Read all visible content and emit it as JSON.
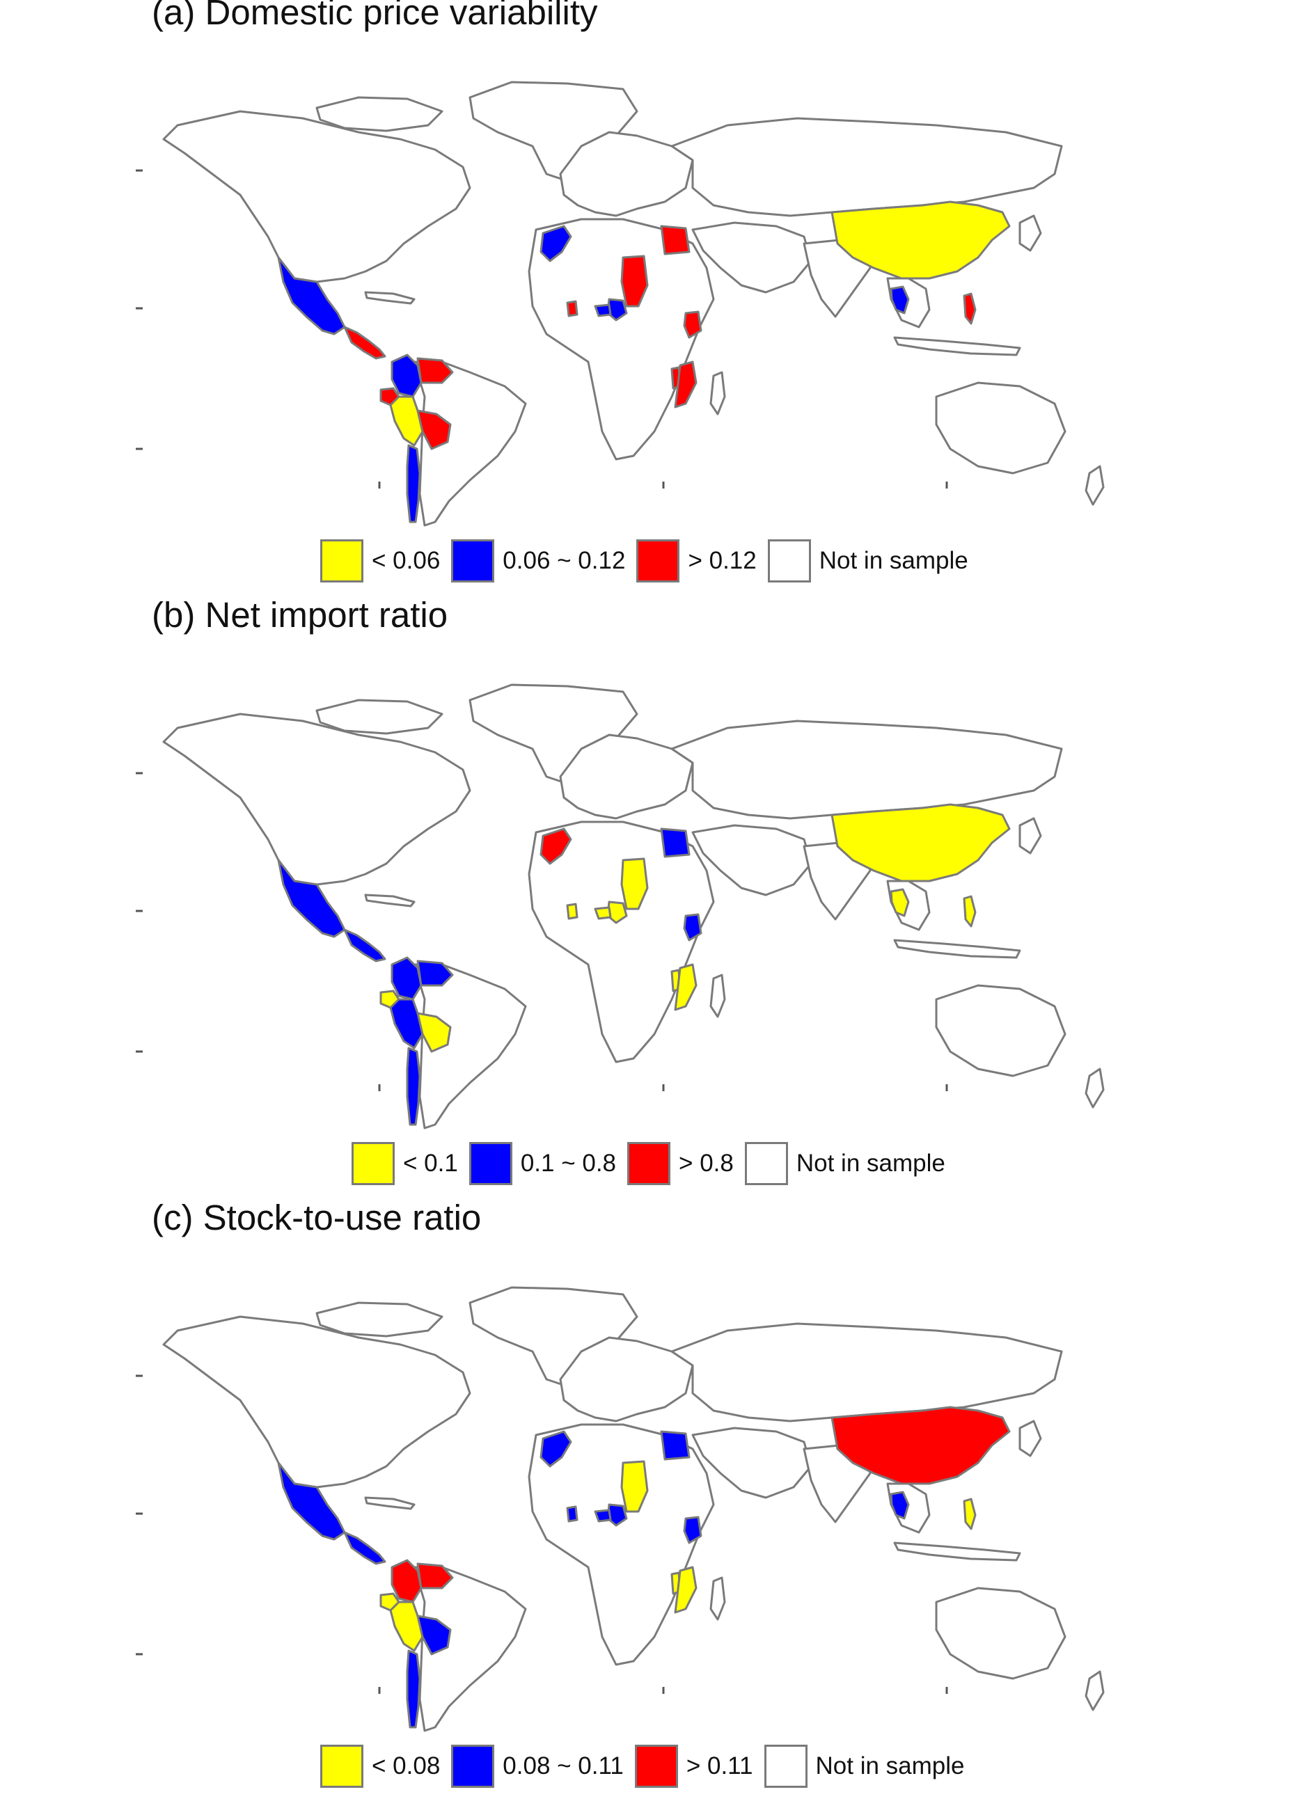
{
  "colors": {
    "yellow": "#ffff00",
    "blue": "#0000ff",
    "red": "#ff0000",
    "none": "#ffffff",
    "border": "#7a7a7a"
  },
  "panels": [
    {
      "title": "(a) Domestic price variability",
      "legend": [
        {
          "label": "< 0.06",
          "color": "#ffff00"
        },
        {
          "label": "0.06 ~ 0.12",
          "color": "#0000ff"
        },
        {
          "label": "> 0.12",
          "color": "#ff0000"
        },
        {
          "label": "Not in sample",
          "color": "#ffffff"
        }
      ],
      "regions": {
        "mexico": "blue",
        "central-america": "red",
        "colombia": "blue",
        "venezuela": "red",
        "peru": "yellow",
        "ecuador": "red",
        "bolivia": "red",
        "chile": "blue",
        "morocco": "blue",
        "egypt": "red",
        "chad": "red",
        "cameroon": "blue",
        "nigeria-south": "blue",
        "ghana": "red",
        "kenya": "red",
        "mozambique": "red",
        "malawi": "red",
        "china": "yellow",
        "thailand": "blue",
        "philippines": "red"
      }
    },
    {
      "title": "(b) Net import ratio",
      "legend": [
        {
          "label": "< 0.1",
          "color": "#ffff00"
        },
        {
          "label": "0.1 ~ 0.8",
          "color": "#0000ff"
        },
        {
          "label": "> 0.8",
          "color": "#ff0000"
        },
        {
          "label": "Not in sample",
          "color": "#ffffff"
        }
      ],
      "regions": {
        "mexico": "blue",
        "central-america": "blue",
        "colombia": "blue",
        "venezuela": "blue",
        "peru": "blue",
        "ecuador": "yellow",
        "bolivia": "yellow",
        "chile": "blue",
        "morocco": "red",
        "egypt": "blue",
        "chad": "yellow",
        "cameroon": "yellow",
        "nigeria-south": "yellow",
        "ghana": "yellow",
        "kenya": "blue",
        "mozambique": "yellow",
        "malawi": "yellow",
        "china": "yellow",
        "thailand": "yellow",
        "philippines": "yellow"
      }
    },
    {
      "title": "(c) Stock-to-use ratio",
      "legend": [
        {
          "label": "< 0.08",
          "color": "#ffff00"
        },
        {
          "label": "0.08 ~ 0.11",
          "color": "#0000ff"
        },
        {
          "label": "> 0.11",
          "color": "#ff0000"
        },
        {
          "label": "Not in sample",
          "color": "#ffffff"
        }
      ],
      "regions": {
        "mexico": "blue",
        "central-america": "blue",
        "colombia": "red",
        "venezuela": "red",
        "peru": "yellow",
        "ecuador": "yellow",
        "bolivia": "blue",
        "chile": "blue",
        "morocco": "blue",
        "egypt": "blue",
        "chad": "yellow",
        "cameroon": "blue",
        "nigeria-south": "blue",
        "ghana": "blue",
        "kenya": "blue",
        "mozambique": "yellow",
        "malawi": "yellow",
        "china": "red",
        "thailand": "blue",
        "philippines": "yellow"
      }
    }
  ]
}
